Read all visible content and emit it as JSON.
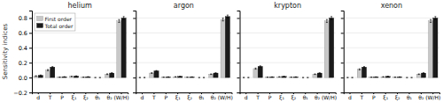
{
  "chart_data": [
    {
      "type": "bar",
      "title": "helium",
      "ylabel": "Sensitivity indices",
      "categories": [
        "d",
        "T",
        "P",
        "ξ₁",
        "ξ₂",
        "θ₁",
        "θ₂",
        "(W/H)"
      ],
      "series": [
        {
          "name": "First order",
          "color": "#c8c8c8",
          "values": [
            0.02,
            0.1,
            0.005,
            0.015,
            0.005,
            0.0,
            0.045,
            0.76
          ],
          "errors": [
            0.005,
            0.008,
            0.002,
            0.003,
            0.002,
            0.001,
            0.005,
            0.02
          ]
        },
        {
          "name": "Total order",
          "color": "#1a1a1a",
          "values": [
            0.03,
            0.14,
            0.01,
            0.02,
            0.01,
            0.0,
            0.06,
            0.8
          ],
          "errors": [
            0.005,
            0.008,
            0.002,
            0.003,
            0.002,
            0.001,
            0.005,
            0.02
          ]
        }
      ],
      "ylim": [
        -0.2,
        0.9
      ],
      "yticks": [
        {
          "value": -0.2,
          "label": "−0.2"
        },
        {
          "value": 0,
          "label": "0.0"
        },
        0.2,
        0.4,
        0.6,
        0.8
      ],
      "grid": true,
      "legend": "upper left"
    },
    {
      "type": "bar",
      "title": "argon",
      "categories": [
        "d",
        "T",
        "P",
        "ξ₁",
        "ξ₂",
        "θ₁",
        "θ₂",
        "(W/H)"
      ],
      "series": [
        {
          "color": "#c8c8c8",
          "values": [
            0.0,
            0.06,
            0.005,
            0.01,
            0.005,
            0.0,
            0.045,
            0.78
          ],
          "errors": [
            0.002,
            0.005,
            0.002,
            0.002,
            0.002,
            0.001,
            0.004,
            0.02
          ]
        },
        {
          "color": "#1a1a1a",
          "values": [
            0.0,
            0.09,
            0.008,
            0.015,
            0.008,
            0.0,
            0.06,
            0.82
          ],
          "errors": [
            0.002,
            0.005,
            0.002,
            0.002,
            0.002,
            0.001,
            0.004,
            0.02
          ]
        }
      ],
      "ylim": [
        -0.2,
        0.9
      ],
      "yticks": [
        -0.2,
        0,
        0.2,
        0.4,
        0.6,
        0.8
      ],
      "grid": true,
      "tick_labels": "x"
    },
    {
      "type": "bar",
      "title": "krypton",
      "categories": [
        "d",
        "T",
        "P",
        "ξ₁",
        "ξ₂",
        "θ₁",
        "θ₂",
        "(W/H)"
      ],
      "series": [
        {
          "color": "#c8c8c8",
          "values": [
            0.0,
            0.12,
            0.005,
            0.01,
            0.005,
            0.0,
            0.045,
            0.76
          ],
          "errors": [
            0.002,
            0.008,
            0.002,
            0.002,
            0.002,
            0.001,
            0.004,
            0.02
          ]
        },
        {
          "color": "#1a1a1a",
          "values": [
            0.0,
            0.15,
            0.008,
            0.015,
            0.008,
            0.0,
            0.06,
            0.8
          ],
          "errors": [
            0.002,
            0.008,
            0.002,
            0.002,
            0.002,
            0.001,
            0.004,
            0.02
          ]
        }
      ],
      "ylim": [
        -0.2,
        0.9
      ],
      "yticks": [
        -0.2,
        0,
        0.2,
        0.4,
        0.6,
        0.8
      ],
      "grid": true,
      "tick_labels": "x"
    },
    {
      "type": "bar",
      "title": "xenon",
      "categories": [
        "d",
        "T",
        "P",
        "ξ₁",
        "ξ₂",
        "θ₁",
        "θ₂",
        "(W/H)"
      ],
      "series": [
        {
          "color": "#c8c8c8",
          "values": [
            0.0,
            0.11,
            0.005,
            0.01,
            0.005,
            0.0,
            0.045,
            0.76
          ],
          "errors": [
            0.002,
            0.008,
            0.002,
            0.002,
            0.002,
            0.001,
            0.004,
            0.02
          ]
        },
        {
          "color": "#1a1a1a",
          "values": [
            0.0,
            0.14,
            0.008,
            0.015,
            0.008,
            0.0,
            0.06,
            0.8
          ],
          "errors": [
            0.002,
            0.008,
            0.002,
            0.002,
            0.002,
            0.001,
            0.004,
            0.02
          ]
        }
      ],
      "ylim": [
        -0.2,
        0.9
      ],
      "yticks": [
        -0.2,
        0,
        0.2,
        0.4,
        0.6,
        0.8
      ],
      "grid": true,
      "tick_labels": "x"
    }
  ]
}
